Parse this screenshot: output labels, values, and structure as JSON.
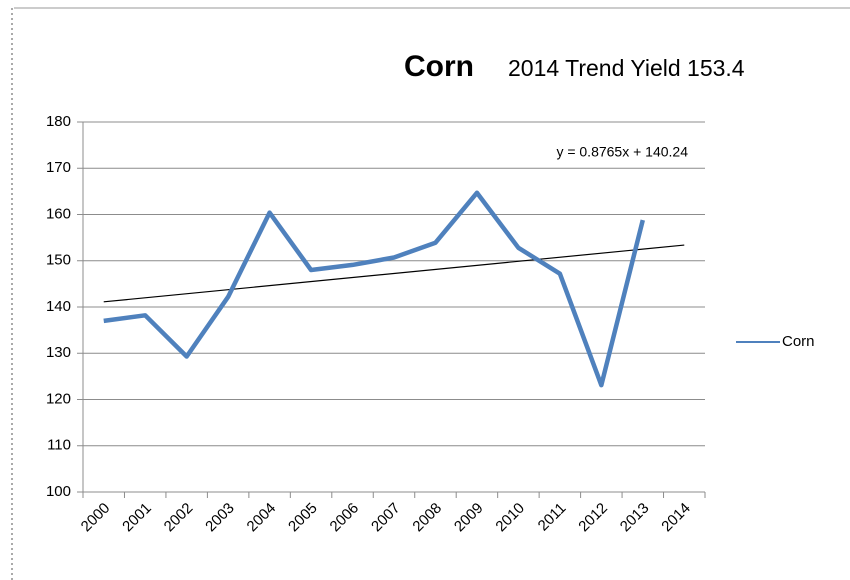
{
  "chart_data": {
    "type": "line",
    "title": "Corn",
    "subtitle": "2014 Trend Yield 153.4",
    "categories": [
      "2000",
      "2001",
      "2002",
      "2003",
      "2004",
      "2005",
      "2006",
      "2007",
      "2008",
      "2009",
      "2010",
      "2011",
      "2012",
      "2013",
      "2014"
    ],
    "series": [
      {
        "name": "Corn",
        "color": "#4f81bd",
        "values": [
          137.0,
          138.2,
          129.3,
          142.2,
          160.4,
          148.0,
          149.1,
          150.7,
          153.9,
          164.7,
          152.8,
          147.2,
          123.1,
          158.8,
          null
        ]
      }
    ],
    "trendline": {
      "label": "y = 0.8765x + 140.24",
      "slope": 0.8765,
      "intercept": 140.24
    },
    "ylim": [
      100,
      180
    ],
    "yticks": [
      100,
      110,
      120,
      130,
      140,
      150,
      160,
      170,
      180
    ],
    "grid": true,
    "legend": "right"
  }
}
